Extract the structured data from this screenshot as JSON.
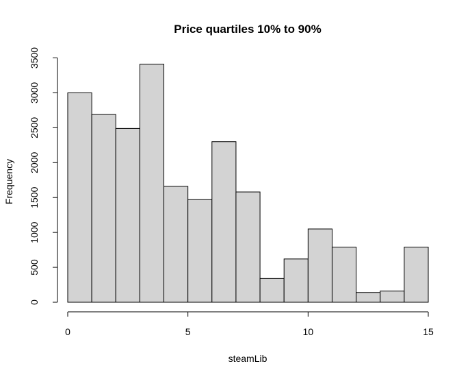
{
  "chart_data": {
    "type": "bar",
    "title": "Price quartiles 10% to 90%",
    "xlabel": "steamLib",
    "ylabel": "Frequency",
    "xlim": [
      0,
      15
    ],
    "ylim": [
      0,
      3500
    ],
    "x_ticks": [
      0,
      5,
      10,
      15
    ],
    "y_ticks": [
      0,
      500,
      1000,
      1500,
      2000,
      2500,
      3000,
      3500
    ],
    "bin_edges": [
      0,
      1,
      2,
      3,
      4,
      5,
      6,
      7,
      8,
      9,
      10,
      11,
      12,
      13,
      14,
      15
    ],
    "values": [
      3000,
      2690,
      2490,
      3410,
      1660,
      1470,
      2300,
      1580,
      340,
      620,
      1050,
      790,
      140,
      160,
      790
    ],
    "bar_color": "#d3d3d3",
    "grid": false
  }
}
